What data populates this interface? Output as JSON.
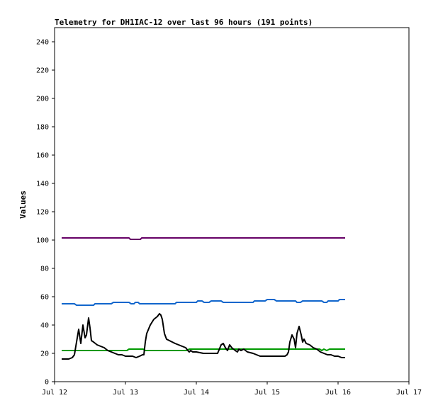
{
  "chart_data": {
    "type": "line",
    "title": "Telemetry for DH1IAC-12 over last 96 hours (191 points)",
    "ylabel": "Values",
    "xlabel": "",
    "ylim": [
      0,
      250
    ],
    "xlim": [
      0,
      5
    ],
    "y_ticks": [
      0,
      20,
      40,
      60,
      80,
      100,
      120,
      140,
      160,
      180,
      200,
      220,
      240
    ],
    "x_ticks": [
      {
        "x": 0,
        "label": "Jul 12"
      },
      {
        "x": 1,
        "label": "Jul 13"
      },
      {
        "x": 2,
        "label": "Jul 14"
      },
      {
        "x": 3,
        "label": "Jul 15"
      },
      {
        "x": 4,
        "label": "Jul 16"
      },
      {
        "x": 5,
        "label": "Jul 17"
      }
    ],
    "grid": false,
    "legend": "none",
    "series": [
      {
        "color": "#660066",
        "points": [
          [
            0.1,
            101.5
          ],
          [
            1.05,
            101.5
          ],
          [
            1.07,
            100.5
          ],
          [
            1.21,
            100.5
          ],
          [
            1.23,
            101.5
          ],
          [
            4.1,
            101.5
          ]
        ]
      },
      {
        "color": "#1166cc",
        "points": [
          [
            0.1,
            55
          ],
          [
            0.28,
            55
          ],
          [
            0.31,
            54
          ],
          [
            0.55,
            54
          ],
          [
            0.57,
            55
          ],
          [
            0.8,
            55
          ],
          [
            0.83,
            56
          ],
          [
            1.05,
            56
          ],
          [
            1.08,
            55
          ],
          [
            1.12,
            55
          ],
          [
            1.14,
            56
          ],
          [
            1.18,
            56
          ],
          [
            1.2,
            55
          ],
          [
            1.7,
            55
          ],
          [
            1.72,
            56
          ],
          [
            2.0,
            56
          ],
          [
            2.02,
            57
          ],
          [
            2.08,
            57
          ],
          [
            2.11,
            56
          ],
          [
            2.18,
            56
          ],
          [
            2.21,
            57
          ],
          [
            2.35,
            57
          ],
          [
            2.38,
            56
          ],
          [
            2.8,
            56
          ],
          [
            2.82,
            57
          ],
          [
            2.97,
            57
          ],
          [
            3.0,
            58
          ],
          [
            3.1,
            58
          ],
          [
            3.13,
            57
          ],
          [
            3.4,
            57
          ],
          [
            3.42,
            56
          ],
          [
            3.47,
            56
          ],
          [
            3.5,
            57
          ],
          [
            3.77,
            57
          ],
          [
            3.8,
            56
          ],
          [
            3.84,
            56
          ],
          [
            3.86,
            57
          ],
          [
            4.0,
            57
          ],
          [
            4.02,
            58
          ],
          [
            4.1,
            58
          ]
        ]
      },
      {
        "color": "#009900",
        "points": [
          [
            0.1,
            22
          ],
          [
            1.02,
            22
          ],
          [
            1.05,
            23
          ],
          [
            1.25,
            23
          ],
          [
            1.28,
            22
          ],
          [
            1.86,
            22
          ],
          [
            1.9,
            23
          ],
          [
            3.74,
            23
          ],
          [
            3.77,
            22
          ],
          [
            3.8,
            23
          ],
          [
            3.84,
            22
          ],
          [
            3.88,
            23
          ],
          [
            4.1,
            23
          ]
        ]
      },
      {
        "color": "#000000",
        "points": [
          [
            0.1,
            16
          ],
          [
            0.2,
            16
          ],
          [
            0.25,
            17
          ],
          [
            0.28,
            19
          ],
          [
            0.31,
            28
          ],
          [
            0.34,
            37
          ],
          [
            0.37,
            27
          ],
          [
            0.4,
            40
          ],
          [
            0.43,
            31
          ],
          [
            0.45,
            33
          ],
          [
            0.48,
            45
          ],
          [
            0.5,
            38
          ],
          [
            0.52,
            29
          ],
          [
            0.55,
            28
          ],
          [
            0.6,
            26
          ],
          [
            0.65,
            25
          ],
          [
            0.7,
            24
          ],
          [
            0.75,
            22
          ],
          [
            0.8,
            21
          ],
          [
            0.85,
            20
          ],
          [
            0.9,
            19
          ],
          [
            0.95,
            19
          ],
          [
            1.0,
            18
          ],
          [
            1.05,
            18
          ],
          [
            1.1,
            18
          ],
          [
            1.15,
            17
          ],
          [
            1.2,
            18
          ],
          [
            1.24,
            19
          ],
          [
            1.26,
            19
          ],
          [
            1.28,
            28
          ],
          [
            1.3,
            34
          ],
          [
            1.35,
            40
          ],
          [
            1.4,
            44
          ],
          [
            1.45,
            46
          ],
          [
            1.48,
            48
          ],
          [
            1.5,
            47
          ],
          [
            1.52,
            44
          ],
          [
            1.55,
            34
          ],
          [
            1.58,
            30
          ],
          [
            1.62,
            29
          ],
          [
            1.66,
            28
          ],
          [
            1.7,
            27
          ],
          [
            1.75,
            26
          ],
          [
            1.8,
            25
          ],
          [
            1.85,
            24
          ],
          [
            1.88,
            22
          ],
          [
            1.9,
            21
          ],
          [
            1.92,
            22
          ],
          [
            1.95,
            21
          ],
          [
            2.0,
            21
          ],
          [
            2.1,
            20
          ],
          [
            2.2,
            20
          ],
          [
            2.3,
            20
          ],
          [
            2.35,
            26
          ],
          [
            2.38,
            27
          ],
          [
            2.41,
            24
          ],
          [
            2.44,
            22
          ],
          [
            2.47,
            26
          ],
          [
            2.5,
            24
          ],
          [
            2.55,
            22
          ],
          [
            2.58,
            21
          ],
          [
            2.6,
            23
          ],
          [
            2.63,
            22
          ],
          [
            2.67,
            23
          ],
          [
            2.72,
            21
          ],
          [
            2.8,
            20
          ],
          [
            2.9,
            18
          ],
          [
            3.0,
            18
          ],
          [
            3.1,
            18
          ],
          [
            3.2,
            18
          ],
          [
            3.25,
            18
          ],
          [
            3.28,
            19
          ],
          [
            3.3,
            21
          ],
          [
            3.32,
            28
          ],
          [
            3.35,
            33
          ],
          [
            3.38,
            30
          ],
          [
            3.4,
            24
          ],
          [
            3.42,
            34
          ],
          [
            3.45,
            39
          ],
          [
            3.48,
            33
          ],
          [
            3.5,
            28
          ],
          [
            3.52,
            30
          ],
          [
            3.55,
            27
          ],
          [
            3.6,
            26
          ],
          [
            3.65,
            24
          ],
          [
            3.7,
            23
          ],
          [
            3.75,
            21
          ],
          [
            3.8,
            20
          ],
          [
            3.85,
            19
          ],
          [
            3.9,
            19
          ],
          [
            3.95,
            18
          ],
          [
            4.0,
            18
          ],
          [
            4.05,
            17
          ],
          [
            4.1,
            17
          ]
        ]
      }
    ]
  }
}
